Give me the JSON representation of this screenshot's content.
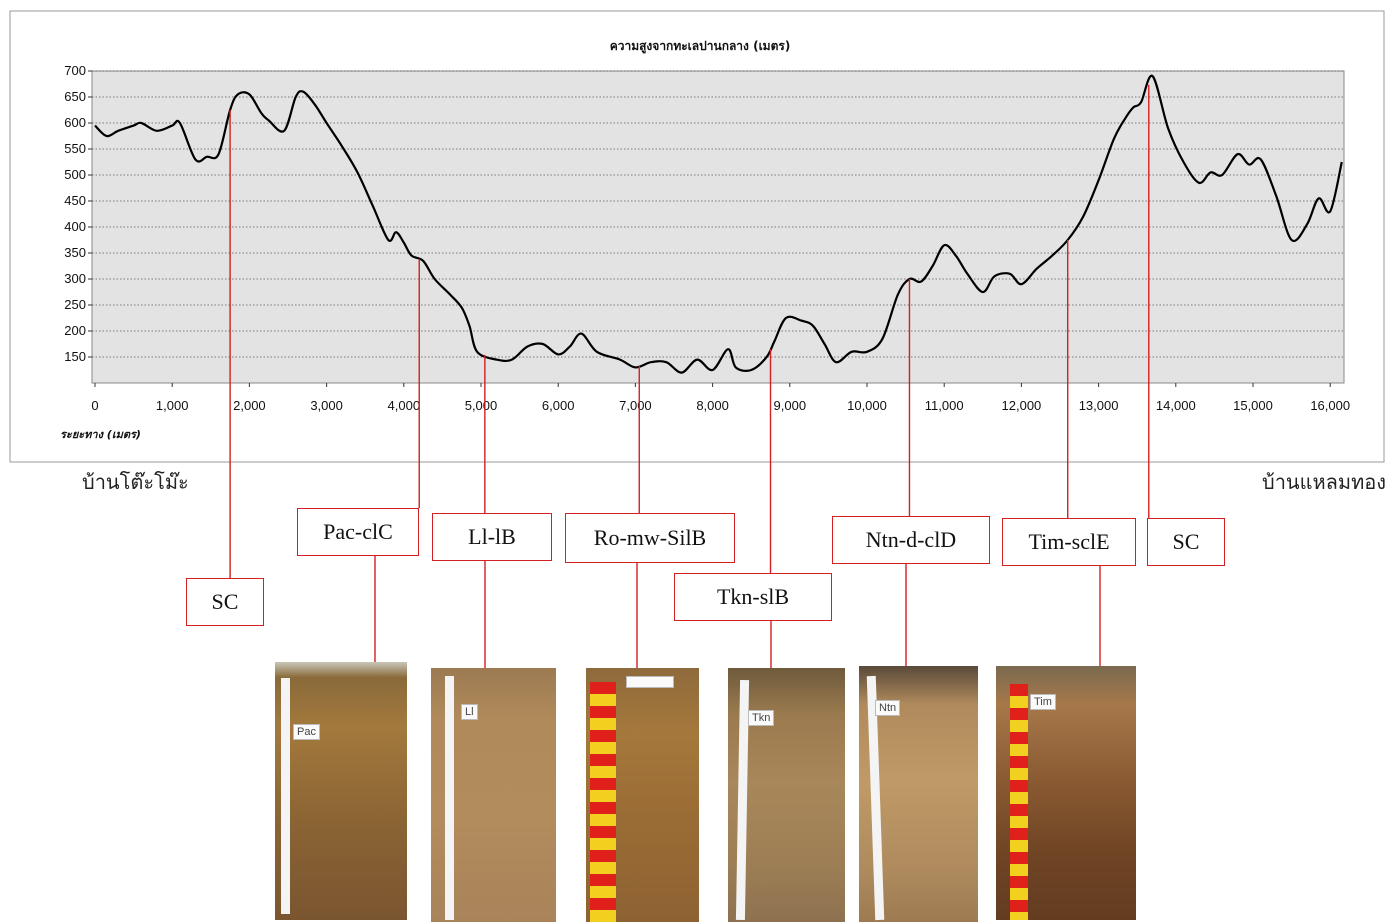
{
  "chart_data": {
    "type": "line",
    "title": "ความสูงจากทะเลปานกลาง (เมตร)",
    "xlabel": "ระยะทาง (เมตร)",
    "ylabel": "",
    "xlim": [
      0,
      16200
    ],
    "ylim": [
      100,
      700
    ],
    "grid": true,
    "x_ticks": [
      "0",
      "1,000",
      "2,000",
      "3,000",
      "4,000",
      "5,000",
      "6,000",
      "7,000",
      "8,000",
      "9,000",
      "10,000",
      "11,000",
      "12,000",
      "13,000",
      "14,000",
      "15,000",
      "16,000"
    ],
    "y_ticks": [
      "700",
      "650",
      "600",
      "550",
      "500",
      "450",
      "400",
      "350",
      "300",
      "250",
      "200",
      "150"
    ],
    "series": [
      {
        "color": "#000000",
        "x": [
          0,
          150,
          300,
          500,
          600,
          800,
          1000,
          1100,
          1300,
          1450,
          1600,
          1750,
          1850,
          2000,
          2150,
          2250,
          2450,
          2600,
          2700,
          2850,
          3000,
          3200,
          3400,
          3600,
          3800,
          3900,
          4000,
          4100,
          4250,
          4400,
          4600,
          4750,
          4850,
          4950,
          5200,
          5400,
          5600,
          5800,
          6000,
          6150,
          6300,
          6500,
          6800,
          7000,
          7200,
          7400,
          7600,
          7800,
          8000,
          8200,
          8300,
          8500,
          8700,
          8800,
          8950,
          9150,
          9300,
          9450,
          9600,
          9800,
          10000,
          10200,
          10400,
          10550,
          10700,
          10850,
          11000,
          11150,
          11300,
          11500,
          11650,
          11850,
          12000,
          12200,
          12400,
          12600,
          12800,
          13000,
          13200,
          13350,
          13450,
          13550,
          13700,
          13900,
          14100,
          14300,
          14450,
          14600,
          14800,
          14950,
          15100,
          15300,
          15500,
          15700,
          15850,
          16000,
          16150
        ],
        "y": [
          595,
          575,
          585,
          595,
          600,
          585,
          595,
          600,
          530,
          535,
          540,
          625,
          655,
          655,
          620,
          605,
          585,
          650,
          660,
          635,
          600,
          555,
          505,
          440,
          375,
          390,
          370,
          345,
          335,
          300,
          270,
          245,
          210,
          160,
          145,
          145,
          170,
          175,
          155,
          170,
          195,
          160,
          145,
          130,
          140,
          140,
          120,
          145,
          125,
          165,
          130,
          125,
          150,
          180,
          225,
          220,
          210,
          175,
          140,
          160,
          160,
          185,
          270,
          300,
          295,
          325,
          365,
          345,
          310,
          275,
          305,
          310,
          290,
          320,
          345,
          375,
          420,
          490,
          570,
          610,
          630,
          640,
          690,
          590,
          525,
          485,
          505,
          500,
          540,
          520,
          530,
          460,
          375,
          405,
          455,
          430,
          525
        ]
      }
    ],
    "markers": [
      {
        "x": 1750,
        "label": "SC"
      },
      {
        "x": 4200,
        "label": "Pac-clC"
      },
      {
        "x": 5050,
        "label": "Ll-lB"
      },
      {
        "x": 7050,
        "label": "Ro-mw-SilB"
      },
      {
        "x": 8750,
        "label": "Tkn-slB"
      },
      {
        "x": 10550,
        "label": "Ntn-d-clD"
      },
      {
        "x": 12600,
        "label": "Tim-sclE"
      },
      {
        "x": 13650,
        "label": "SC"
      }
    ]
  },
  "places": {
    "left": "บ้านโต๊ะโม๊ะ",
    "right": "บ้านแหลมทอง"
  },
  "photos": [
    {
      "tag": "Pac",
      "ruler": "white-cm"
    },
    {
      "tag": "Ll",
      "ruler": "white-cm"
    },
    {
      "tag": "",
      "ruler": "red-yellow"
    },
    {
      "tag": "Tkn",
      "ruler": "white-cm"
    },
    {
      "tag": "Ntn",
      "ruler": "white-cm"
    },
    {
      "tag": "Tim",
      "ruler": "red-yellow"
    }
  ],
  "colors": {
    "plot_bg": "#e3e3e3",
    "connector": "#d42020",
    "line": "#000000"
  }
}
